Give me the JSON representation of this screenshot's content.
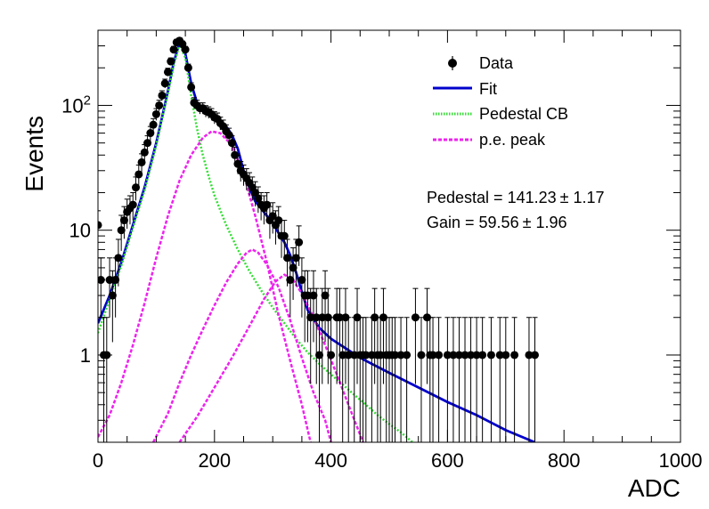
{
  "chart_data": {
    "type": "scatter",
    "title": "",
    "xlabel": "ADC",
    "ylabel": "Events",
    "xlim": [
      0,
      1000
    ],
    "ylim": [
      0.2,
      400
    ],
    "yscale": "log",
    "grid": false,
    "legend_position": "top-right",
    "x_ticks": [
      0,
      200,
      400,
      600,
      800,
      1000
    ],
    "x_tick_labels": [
      "0",
      "200",
      "400",
      "600",
      "800",
      "1000"
    ],
    "y_ticks": [
      1,
      10,
      100
    ],
    "y_tick_labels": [
      "1",
      "10",
      "10^2"
    ],
    "legend": [
      {
        "label": "Data",
        "style": "marker",
        "color": "#000000"
      },
      {
        "label": "Fit",
        "style": "solid",
        "color": "#0000cc"
      },
      {
        "label": "Pedestal CB",
        "style": "dotted",
        "color": "#33dd33"
      },
      {
        "label": "p.e. peak",
        "style": "dashed",
        "color": "#ee22ee"
      }
    ],
    "annotations": [
      {
        "text": "Pedestal = 141.23",
        "pm": "1.17"
      },
      {
        "text": "Gain = 59.56",
        "pm": "1.96"
      }
    ],
    "series": [
      {
        "name": "Data",
        "kind": "points_with_errors",
        "color": "#000000",
        "points": [
          [
            0,
            11
          ],
          [
            5,
            4
          ],
          [
            10,
            1
          ],
          [
            15,
            1
          ],
          [
            20,
            4
          ],
          [
            25,
            3
          ],
          [
            30,
            4
          ],
          [
            35,
            6
          ],
          [
            40,
            10
          ],
          [
            45,
            12
          ],
          [
            50,
            14
          ],
          [
            55,
            15
          ],
          [
            60,
            16
          ],
          [
            65,
            22
          ],
          [
            70,
            28
          ],
          [
            75,
            35
          ],
          [
            80,
            42
          ],
          [
            85,
            50
          ],
          [
            90,
            60
          ],
          [
            95,
            70
          ],
          [
            100,
            85
          ],
          [
            105,
            100
          ],
          [
            110,
            120
          ],
          [
            115,
            150
          ],
          [
            120,
            185
          ],
          [
            125,
            225
          ],
          [
            130,
            280
          ],
          [
            135,
            320
          ],
          [
            140,
            330
          ],
          [
            145,
            310
          ],
          [
            150,
            280
          ],
          [
            155,
            200
          ],
          [
            160,
            140
          ],
          [
            165,
            105
          ],
          [
            170,
            100
          ],
          [
            175,
            95
          ],
          [
            180,
            95
          ],
          [
            185,
            90
          ],
          [
            190,
            88
          ],
          [
            195,
            85
          ],
          [
            200,
            80
          ],
          [
            205,
            78
          ],
          [
            210,
            72
          ],
          [
            215,
            68
          ],
          [
            220,
            62
          ],
          [
            225,
            58
          ],
          [
            230,
            50
          ],
          [
            235,
            40
          ],
          [
            240,
            34
          ],
          [
            245,
            30
          ],
          [
            250,
            28
          ],
          [
            255,
            26
          ],
          [
            260,
            24
          ],
          [
            265,
            22
          ],
          [
            270,
            20
          ],
          [
            275,
            18
          ],
          [
            280,
            16
          ],
          [
            285,
            15
          ],
          [
            290,
            16
          ],
          [
            295,
            12
          ],
          [
            300,
            13
          ],
          [
            305,
            11
          ],
          [
            310,
            12
          ],
          [
            315,
            9
          ],
          [
            320,
            9
          ],
          [
            325,
            6
          ],
          [
            330,
            4
          ],
          [
            335,
            5
          ],
          [
            340,
            6
          ],
          [
            345,
            8
          ],
          [
            350,
            4
          ],
          [
            355,
            3
          ],
          [
            360,
            3
          ],
          [
            365,
            2
          ],
          [
            370,
            3
          ],
          [
            375,
            2
          ],
          [
            380,
            1
          ],
          [
            385,
            2
          ],
          [
            390,
            3
          ],
          [
            395,
            2
          ],
          [
            400,
            1
          ],
          [
            410,
            2
          ],
          [
            415,
            2
          ],
          [
            420,
            1
          ],
          [
            425,
            2
          ],
          [
            430,
            1
          ],
          [
            440,
            1
          ],
          [
            445,
            2
          ],
          [
            450,
            1
          ],
          [
            455,
            1
          ],
          [
            460,
            1
          ],
          [
            470,
            1
          ],
          [
            475,
            2
          ],
          [
            480,
            1
          ],
          [
            485,
            1
          ],
          [
            490,
            2
          ],
          [
            495,
            1
          ],
          [
            500,
            1
          ],
          [
            505,
            1
          ],
          [
            510,
            1
          ],
          [
            520,
            1
          ],
          [
            530,
            1
          ],
          [
            545,
            2
          ],
          [
            555,
            1
          ],
          [
            565,
            2
          ],
          [
            570,
            1
          ],
          [
            575,
            1
          ],
          [
            585,
            1
          ],
          [
            600,
            1
          ],
          [
            610,
            1
          ],
          [
            620,
            1
          ],
          [
            630,
            1
          ],
          [
            640,
            1
          ],
          [
            650,
            1
          ],
          [
            660,
            1
          ],
          [
            675,
            1
          ],
          [
            690,
            1
          ],
          [
            700,
            1
          ],
          [
            715,
            1
          ],
          [
            740,
            1
          ],
          [
            750,
            1
          ]
        ]
      },
      {
        "name": "Fit",
        "kind": "line",
        "color": "#0000cc",
        "points": [
          [
            0,
            1.8
          ],
          [
            20,
            3
          ],
          [
            40,
            5.5
          ],
          [
            60,
            11
          ],
          [
            80,
            22
          ],
          [
            100,
            50
          ],
          [
            110,
            80
          ],
          [
            120,
            130
          ],
          [
            130,
            220
          ],
          [
            140,
            320
          ],
          [
            150,
            260
          ],
          [
            160,
            150
          ],
          [
            170,
            105
          ],
          [
            180,
            92
          ],
          [
            190,
            88
          ],
          [
            200,
            82
          ],
          [
            210,
            76
          ],
          [
            220,
            68
          ],
          [
            230,
            58
          ],
          [
            240,
            45
          ],
          [
            250,
            30
          ],
          [
            260,
            22
          ],
          [
            270,
            17
          ],
          [
            280,
            15
          ],
          [
            290,
            13
          ],
          [
            300,
            11.5
          ],
          [
            310,
            9.5
          ],
          [
            320,
            8
          ],
          [
            330,
            6.3
          ],
          [
            340,
            4.6
          ],
          [
            350,
            3.2
          ],
          [
            360,
            2.3
          ],
          [
            380,
            1.65
          ],
          [
            400,
            1.35
          ],
          [
            450,
            0.95
          ],
          [
            500,
            0.72
          ],
          [
            550,
            0.55
          ],
          [
            600,
            0.42
          ],
          [
            650,
            0.33
          ],
          [
            700,
            0.25
          ],
          [
            750,
            0.2
          ]
        ]
      },
      {
        "name": "Pedestal CB",
        "kind": "line",
        "color": "#33dd33",
        "points": [
          [
            0,
            1.5
          ],
          [
            20,
            2.8
          ],
          [
            40,
            5.2
          ],
          [
            60,
            10.5
          ],
          [
            80,
            21
          ],
          [
            100,
            48
          ],
          [
            110,
            78
          ],
          [
            120,
            125
          ],
          [
            130,
            210
          ],
          [
            140,
            310
          ],
          [
            150,
            240
          ],
          [
            160,
            120
          ],
          [
            170,
            65
          ],
          [
            180,
            40
          ],
          [
            190,
            27
          ],
          [
            200,
            19
          ],
          [
            220,
            11
          ],
          [
            240,
            7
          ],
          [
            260,
            4.7
          ],
          [
            280,
            3.3
          ],
          [
            300,
            2.4
          ],
          [
            320,
            1.8
          ],
          [
            340,
            1.35
          ],
          [
            360,
            1.05
          ],
          [
            380,
            0.85
          ],
          [
            400,
            0.7
          ],
          [
            420,
            0.58
          ],
          [
            440,
            0.48
          ],
          [
            460,
            0.4
          ],
          [
            480,
            0.33
          ],
          [
            500,
            0.28
          ],
          [
            520,
            0.24
          ],
          [
            540,
            0.2
          ]
        ]
      },
      {
        "name": "p.e. peak 1",
        "kind": "line",
        "color": "#ee22ee",
        "points": [
          [
            0,
            0.22
          ],
          [
            20,
            0.33
          ],
          [
            40,
            0.6
          ],
          [
            60,
            1.2
          ],
          [
            80,
            2.6
          ],
          [
            100,
            6
          ],
          [
            120,
            13
          ],
          [
            140,
            25
          ],
          [
            160,
            40
          ],
          [
            180,
            55
          ],
          [
            195,
            62
          ],
          [
            210,
            60
          ],
          [
            230,
            48
          ],
          [
            250,
            28
          ],
          [
            270,
            13
          ],
          [
            290,
            5.5
          ],
          [
            310,
            2.1
          ],
          [
            330,
            0.9
          ],
          [
            350,
            0.4
          ],
          [
            365,
            0.2
          ]
        ]
      },
      {
        "name": "p.e. peak 2",
        "kind": "line",
        "color": "#ee22ee",
        "points": [
          [
            95,
            0.2
          ],
          [
            120,
            0.34
          ],
          [
            140,
            0.6
          ],
          [
            160,
            1
          ],
          [
            180,
            1.6
          ],
          [
            200,
            2.5
          ],
          [
            220,
            3.8
          ],
          [
            240,
            5.4
          ],
          [
            255,
            6.6
          ],
          [
            265,
            7
          ],
          [
            275,
            6.6
          ],
          [
            290,
            5.3
          ],
          [
            310,
            3.5
          ],
          [
            330,
            1.9
          ],
          [
            350,
            0.95
          ],
          [
            370,
            0.5
          ],
          [
            390,
            0.3
          ],
          [
            400,
            0.2
          ]
        ]
      },
      {
        "name": "p.e. peak 3",
        "kind": "line",
        "color": "#ee22ee",
        "points": [
          [
            140,
            0.2
          ],
          [
            170,
            0.32
          ],
          [
            200,
            0.55
          ],
          [
            230,
            0.95
          ],
          [
            260,
            1.7
          ],
          [
            285,
            2.8
          ],
          [
            305,
            3.9
          ],
          [
            320,
            4.4
          ],
          [
            335,
            4
          ],
          [
            350,
            3.1
          ],
          [
            370,
            2
          ],
          [
            390,
            1.2
          ],
          [
            410,
            0.7
          ],
          [
            430,
            0.4
          ],
          [
            450,
            0.23
          ],
          [
            455,
            0.2
          ]
        ]
      }
    ]
  }
}
